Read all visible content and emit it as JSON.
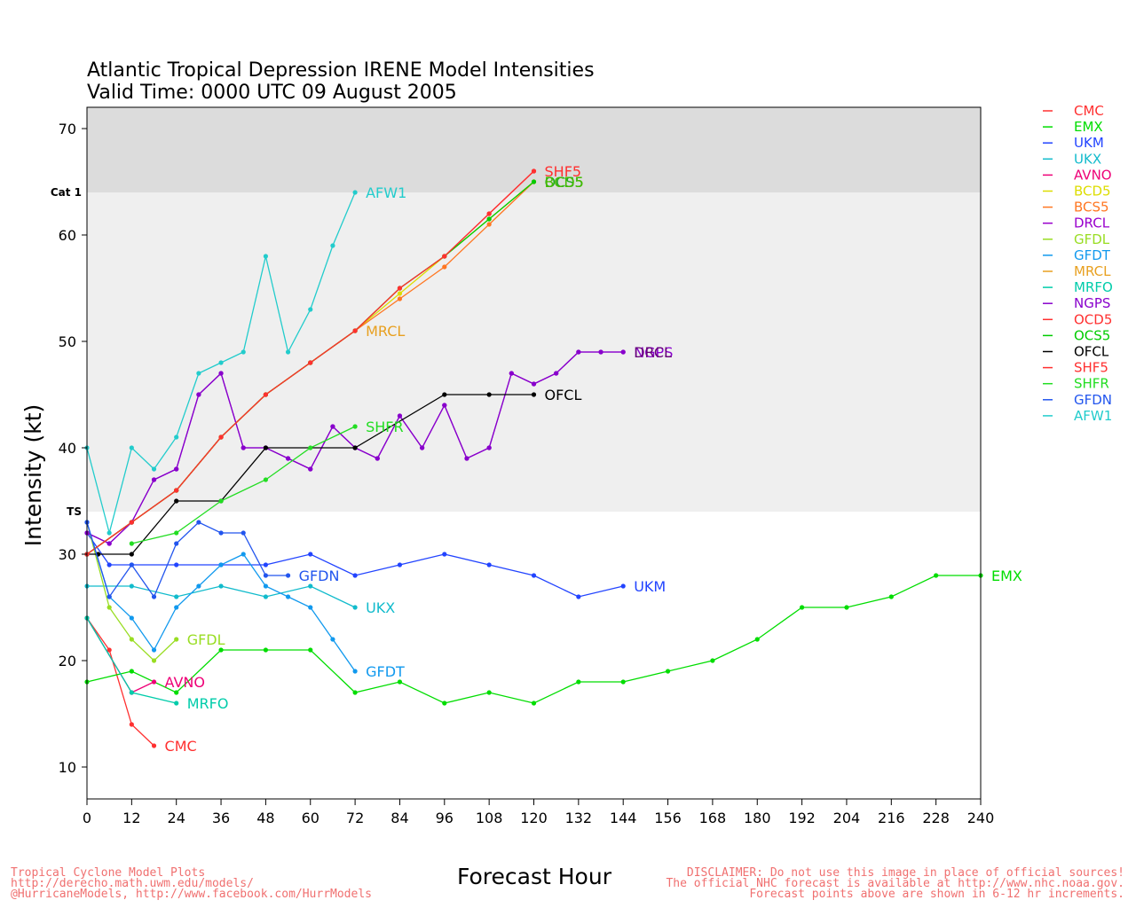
{
  "title_line1": "Atlantic Tropical Depression IRENE Model Intensities",
  "title_line2": "Valid Time: 0000 UTC 09 August 2005",
  "footer_left": [
    "Tropical Cyclone Model Plots",
    "http://derecho.math.uwm.edu/models/",
    "@HurricaneModels, http://www.facebook.com/HurrModels"
  ],
  "footer_right": [
    "DISCLAIMER: Do not use this image in place of official sources!",
    "The official NHC forecast is available at http://www.nhc.noaa.gov.",
    "Forecast points above are shown in 6-12 hr increments."
  ],
  "chart_data": {
    "type": "line",
    "title": "Atlantic Tropical Depression IRENE Model Intensities",
    "subtitle": "Valid Time: 0000 UTC 09 August 2005",
    "xlabel": "Forecast Hour",
    "ylabel": "Intensity (kt)",
    "xlim": [
      0,
      240
    ],
    "ylim": [
      7,
      72
    ],
    "xticks": [
      0,
      12,
      24,
      36,
      48,
      60,
      72,
      84,
      96,
      108,
      120,
      132,
      144,
      156,
      168,
      180,
      192,
      204,
      216,
      228,
      240
    ],
    "yticks": [
      10,
      20,
      30,
      40,
      50,
      60,
      70
    ],
    "bands": [
      {
        "label": "TS",
        "from": 34,
        "to": 64,
        "color": "#efefef"
      },
      {
        "label": "Cat 1",
        "from": 64,
        "to": 72,
        "color": "#dcdcdc"
      }
    ],
    "grid": false,
    "legend_position": "right",
    "series": [
      {
        "name": "CMC",
        "color": "#ff3030",
        "points": [
          [
            0,
            24
          ],
          [
            6,
            21
          ],
          [
            12,
            14
          ],
          [
            18,
            12
          ]
        ],
        "label": "CMC"
      },
      {
        "name": "EMX",
        "color": "#00dd00",
        "points": [
          [
            0,
            18
          ],
          [
            12,
            19
          ],
          [
            24,
            17
          ],
          [
            36,
            21
          ],
          [
            48,
            21
          ],
          [
            60,
            21
          ],
          [
            72,
            17
          ],
          [
            84,
            18
          ],
          [
            96,
            16
          ],
          [
            108,
            17
          ],
          [
            120,
            16
          ],
          [
            132,
            18
          ],
          [
            144,
            18
          ],
          [
            156,
            19
          ],
          [
            168,
            20
          ],
          [
            180,
            22
          ],
          [
            192,
            25
          ],
          [
            204,
            25
          ],
          [
            216,
            26
          ],
          [
            228,
            28
          ],
          [
            240,
            28
          ]
        ],
        "label": "EMX"
      },
      {
        "name": "UKM",
        "color": "#2244ff",
        "points": [
          [
            0,
            32
          ],
          [
            6,
            29
          ],
          [
            12,
            29
          ],
          [
            24,
            29
          ],
          [
            36,
            29
          ],
          [
            48,
            29
          ],
          [
            60,
            30
          ],
          [
            72,
            28
          ],
          [
            84,
            29
          ],
          [
            96,
            30
          ],
          [
            108,
            29
          ],
          [
            120,
            28
          ],
          [
            132,
            26
          ],
          [
            144,
            27
          ]
        ],
        "label": "UKM"
      },
      {
        "name": "UKX",
        "color": "#11bbcc",
        "points": [
          [
            0,
            27
          ],
          [
            12,
            27
          ],
          [
            24,
            26
          ],
          [
            36,
            27
          ],
          [
            48,
            26
          ],
          [
            60,
            27
          ],
          [
            72,
            25
          ]
        ],
        "label": "UKX"
      },
      {
        "name": "AVNO",
        "color": "#ee0077",
        "points": [
          [
            0,
            24
          ],
          [
            12,
            17
          ],
          [
            18,
            18
          ]
        ],
        "label": "AVNO"
      },
      {
        "name": "BCD5",
        "color": "#dddd00",
        "points": [
          [
            0,
            30
          ],
          [
            12,
            33
          ],
          [
            24,
            36
          ],
          [
            36,
            41
          ],
          [
            48,
            45
          ],
          [
            60,
            48
          ],
          [
            72,
            51
          ],
          [
            84,
            54.5
          ],
          [
            96,
            58
          ],
          [
            108,
            61.5
          ],
          [
            120,
            65
          ]
        ],
        "label": "BCD5"
      },
      {
        "name": "BCS5",
        "color": "#ff7722",
        "points": [
          [
            0,
            30
          ],
          [
            12,
            33
          ],
          [
            24,
            36
          ],
          [
            36,
            41
          ],
          [
            48,
            45
          ],
          [
            60,
            48
          ],
          [
            72,
            51
          ],
          [
            84,
            54
          ],
          [
            96,
            57
          ],
          [
            108,
            61
          ],
          [
            120,
            65
          ]
        ],
        "label": null
      },
      {
        "name": "DRCL",
        "color": "#9900cc",
        "points": [
          [
            0,
            32
          ],
          [
            6,
            31
          ],
          [
            12,
            33
          ],
          [
            18,
            37
          ],
          [
            24,
            38
          ],
          [
            30,
            45
          ],
          [
            36,
            47
          ],
          [
            42,
            40
          ],
          [
            48,
            40
          ],
          [
            54,
            39
          ],
          [
            60,
            38
          ],
          [
            66,
            42
          ],
          [
            72,
            40
          ],
          [
            78,
            39
          ],
          [
            84,
            43
          ],
          [
            90,
            40
          ],
          [
            96,
            44
          ],
          [
            102,
            39
          ],
          [
            108,
            40
          ],
          [
            114,
            47
          ],
          [
            120,
            46
          ],
          [
            126,
            47
          ],
          [
            132,
            49
          ],
          [
            138,
            49
          ],
          [
            144,
            49
          ]
        ],
        "label": null
      },
      {
        "name": "GFDL",
        "color": "#99dd22",
        "points": [
          [
            0,
            33
          ],
          [
            6,
            25
          ],
          [
            12,
            22
          ],
          [
            18,
            20
          ],
          [
            24,
            22
          ]
        ],
        "label": "GFDL"
      },
      {
        "name": "GFDT",
        "color": "#1199ee",
        "points": [
          [
            0,
            33
          ],
          [
            6,
            26
          ],
          [
            12,
            24
          ],
          [
            18,
            21
          ],
          [
            24,
            25
          ],
          [
            30,
            27
          ],
          [
            36,
            29
          ],
          [
            42,
            30
          ],
          [
            48,
            27
          ],
          [
            54,
            26
          ],
          [
            60,
            25
          ],
          [
            66,
            22
          ],
          [
            72,
            19
          ]
        ],
        "label": "GFDT"
      },
      {
        "name": "MRCL",
        "color": "#e8a020",
        "points": [
          [
            0,
            30
          ],
          [
            12,
            33
          ],
          [
            24,
            36
          ],
          [
            36,
            41
          ],
          [
            48,
            45
          ],
          [
            60,
            48
          ],
          [
            72,
            51
          ]
        ],
        "label": "MRCL"
      },
      {
        "name": "MRFO",
        "color": "#00ccaa",
        "points": [
          [
            0,
            24
          ],
          [
            12,
            17
          ],
          [
            24,
            16
          ]
        ],
        "label": "MRFO"
      },
      {
        "name": "NGPS",
        "color": "#8800cc",
        "points": [
          [
            0,
            32
          ],
          [
            6,
            31
          ],
          [
            12,
            33
          ],
          [
            18,
            37
          ],
          [
            24,
            38
          ],
          [
            30,
            45
          ],
          [
            36,
            47
          ],
          [
            42,
            40
          ],
          [
            48,
            40
          ],
          [
            54,
            39
          ],
          [
            60,
            38
          ],
          [
            66,
            42
          ],
          [
            72,
            40
          ],
          [
            78,
            39
          ],
          [
            84,
            43
          ],
          [
            90,
            40
          ],
          [
            96,
            44
          ],
          [
            102,
            39
          ],
          [
            108,
            40
          ],
          [
            114,
            47
          ],
          [
            120,
            46
          ],
          [
            126,
            47
          ],
          [
            132,
            49
          ],
          [
            138,
            49
          ],
          [
            144,
            49
          ]
        ],
        "label": "NGPS"
      },
      {
        "name": "OCD5",
        "color": "#ff3030",
        "points": [
          [
            0,
            30
          ],
          [
            12,
            33
          ],
          [
            24,
            36
          ],
          [
            36,
            41
          ],
          [
            48,
            45
          ],
          [
            60,
            48
          ],
          [
            72,
            51
          ],
          [
            84,
            55
          ],
          [
            96,
            58
          ],
          [
            108,
            62
          ],
          [
            120,
            66
          ]
        ],
        "label": null
      },
      {
        "name": "OCS5",
        "color": "#00cc00",
        "points": [
          [
            0,
            30
          ],
          [
            12,
            33
          ],
          [
            24,
            36
          ],
          [
            36,
            41
          ],
          [
            48,
            45
          ],
          [
            60,
            48
          ],
          [
            72,
            51
          ],
          [
            84,
            55
          ],
          [
            96,
            58
          ],
          [
            108,
            61.5
          ],
          [
            120,
            65
          ]
        ],
        "label": "OCS5"
      },
      {
        "name": "OFCL",
        "color": "#000000",
        "points": [
          [
            0,
            30
          ],
          [
            3,
            30
          ],
          [
            12,
            30
          ],
          [
            24,
            35
          ],
          [
            36,
            35
          ],
          [
            48,
            40
          ],
          [
            72,
            40
          ],
          [
            96,
            45
          ],
          [
            108,
            45
          ],
          [
            120,
            45
          ]
        ],
        "label": "OFCL"
      },
      {
        "name": "SHF5",
        "color": "#ff3030",
        "points": [
          [
            0,
            30
          ],
          [
            12,
            33
          ],
          [
            24,
            36
          ],
          [
            36,
            41
          ],
          [
            48,
            45
          ],
          [
            60,
            48
          ],
          [
            72,
            51
          ],
          [
            84,
            55
          ],
          [
            96,
            58
          ],
          [
            108,
            62
          ],
          [
            120,
            66
          ]
        ],
        "label": "SHF5"
      },
      {
        "name": "SHFR",
        "color": "#22dd22",
        "points": [
          [
            12,
            31
          ],
          [
            24,
            32
          ],
          [
            36,
            35
          ],
          [
            48,
            37
          ],
          [
            60,
            40
          ],
          [
            72,
            42
          ]
        ],
        "label": "SHFR"
      },
      {
        "name": "GFDN",
        "color": "#2255ee",
        "points": [
          [
            0,
            33
          ],
          [
            6,
            26
          ],
          [
            12,
            29
          ],
          [
            18,
            26
          ],
          [
            24,
            31
          ],
          [
            30,
            33
          ],
          [
            36,
            32
          ],
          [
            42,
            32
          ],
          [
            48,
            28
          ],
          [
            54,
            28
          ]
        ],
        "label": "GFDN"
      },
      {
        "name": "AFW1",
        "color": "#22cccc",
        "points": [
          [
            0,
            40
          ],
          [
            6,
            32
          ],
          [
            12,
            40
          ],
          [
            18,
            38
          ],
          [
            24,
            41
          ],
          [
            30,
            47
          ],
          [
            36,
            48
          ],
          [
            42,
            49
          ],
          [
            48,
            58
          ],
          [
            54,
            49
          ],
          [
            60,
            53
          ],
          [
            66,
            59
          ],
          [
            72,
            64
          ]
        ],
        "label": "AFW1"
      }
    ],
    "end_labels": [
      {
        "text": "CMC",
        "series": "CMC",
        "color": "#ff3030"
      },
      {
        "text": "EMX",
        "series": "EMX",
        "color": "#00dd00"
      },
      {
        "text": "UKM",
        "series": "UKM",
        "color": "#2244ff"
      },
      {
        "text": "UKX",
        "series": "UKX",
        "color": "#11bbcc"
      },
      {
        "text": "AVNO",
        "series": "AVNO",
        "color": "#ee0077"
      },
      {
        "text": "GFDL",
        "series": "GFDL",
        "color": "#99dd22"
      },
      {
        "text": "GFDT",
        "series": "GFDT",
        "color": "#1199ee"
      },
      {
        "text": "MRCL",
        "series": "MRCL",
        "color": "#e8a020"
      },
      {
        "text": "MRFO",
        "series": "MRFO",
        "color": "#00ccaa"
      },
      {
        "text": "NGPS",
        "series": "NGPS",
        "color": "#8800cc"
      },
      {
        "text": "OCS5",
        "series": "OCS5",
        "color": "#22aa22"
      },
      {
        "text": "BCD5",
        "series": "BCD5",
        "color": "#44bb00"
      },
      {
        "text": "SHF5",
        "series": "SHF5",
        "color": "#ff3030"
      },
      {
        "text": "SHFR",
        "series": "SHFR",
        "color": "#22dd22"
      },
      {
        "text": "GFDN",
        "series": "GFDN",
        "color": "#2255ee"
      },
      {
        "text": "AFW1",
        "series": "AFW1",
        "color": "#22cccc"
      },
      {
        "text": "OFCL",
        "series": "OFCL",
        "color": "#000000"
      },
      {
        "text": "DRCL",
        "series": "DRCL",
        "color": "#660077"
      }
    ],
    "legend": [
      {
        "name": "CMC",
        "color": "#ff3030"
      },
      {
        "name": "EMX",
        "color": "#00dd00"
      },
      {
        "name": "UKM",
        "color": "#2244ff"
      },
      {
        "name": "UKX",
        "color": "#11bbcc"
      },
      {
        "name": "AVNO",
        "color": "#ee0077"
      },
      {
        "name": "BCD5",
        "color": "#dddd00"
      },
      {
        "name": "BCS5",
        "color": "#ff7722"
      },
      {
        "name": "DRCL",
        "color": "#9900cc"
      },
      {
        "name": "GFDL",
        "color": "#99dd22"
      },
      {
        "name": "GFDT",
        "color": "#1199ee"
      },
      {
        "name": "MRCL",
        "color": "#e8a020"
      },
      {
        "name": "MRFO",
        "color": "#00ccaa"
      },
      {
        "name": "NGPS",
        "color": "#8800cc"
      },
      {
        "name": "OCD5",
        "color": "#ff3030"
      },
      {
        "name": "OCS5",
        "color": "#00cc00"
      },
      {
        "name": "OFCL",
        "color": "#000000"
      },
      {
        "name": "SHF5",
        "color": "#ff3030"
      },
      {
        "name": "SHFR",
        "color": "#22dd22"
      },
      {
        "name": "GFDN",
        "color": "#2255ee"
      },
      {
        "name": "AFW1",
        "color": "#22cccc"
      }
    ]
  }
}
